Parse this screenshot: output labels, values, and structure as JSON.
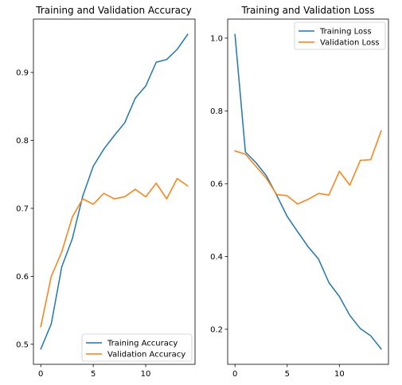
{
  "chart_data": [
    {
      "type": "line",
      "title": "Training and Validation Accuracy",
      "xlabel": "",
      "ylabel": "",
      "xlim": [
        -0.7,
        14.7
      ],
      "ylim": [
        0.4705,
        0.9785
      ],
      "xticks": [
        0,
        5,
        10
      ],
      "yticks": [
        0.5,
        0.6,
        0.7,
        0.8,
        0.9
      ],
      "ytick_labels": [
        "0.5",
        "0.6",
        "0.7",
        "0.8",
        "0.9"
      ],
      "grid": false,
      "legend_position": "lower right",
      "x": [
        0,
        1,
        2,
        3,
        4,
        5,
        6,
        7,
        8,
        9,
        10,
        11,
        12,
        13,
        14
      ],
      "series": [
        {
          "name": "Training Accuracy",
          "color": "#1f77b4",
          "values": [
            0.493,
            0.53,
            0.614,
            0.655,
            0.718,
            0.762,
            0.787,
            0.807,
            0.826,
            0.862,
            0.88,
            0.915,
            0.919,
            0.934,
            0.956
          ]
        },
        {
          "name": "Validation Accuracy",
          "color": "#ff7f0e",
          "values": [
            0.526,
            0.6,
            0.636,
            0.687,
            0.714,
            0.706,
            0.722,
            0.714,
            0.717,
            0.728,
            0.717,
            0.737,
            0.714,
            0.744,
            0.733
          ]
        }
      ]
    },
    {
      "type": "line",
      "title": "Training and Validation Loss",
      "xlabel": "",
      "ylabel": "",
      "xlim": [
        -0.7,
        14.7
      ],
      "ylim": [
        0.1037,
        1.0523
      ],
      "xticks": [
        0,
        5,
        10
      ],
      "yticks": [
        0.2,
        0.4,
        0.6,
        0.8,
        1.0
      ],
      "ytick_labels": [
        "0.2",
        "0.4",
        "0.6",
        "0.8",
        "1.0"
      ],
      "grid": false,
      "legend_position": "upper right",
      "x": [
        0,
        1,
        2,
        3,
        4,
        5,
        6,
        7,
        8,
        9,
        10,
        11,
        12,
        13,
        14
      ],
      "series": [
        {
          "name": "Training Loss",
          "color": "#1f77b4",
          "values": [
            1.01,
            0.687,
            0.658,
            0.622,
            0.568,
            0.51,
            0.468,
            0.427,
            0.393,
            0.328,
            0.29,
            0.238,
            0.202,
            0.182,
            0.146
          ]
        },
        {
          "name": "Validation Loss",
          "color": "#ff7f0e",
          "values": [
            0.69,
            0.681,
            0.648,
            0.615,
            0.57,
            0.567,
            0.544,
            0.557,
            0.573,
            0.569,
            0.634,
            0.596,
            0.664,
            0.666,
            0.745
          ]
        }
      ]
    }
  ]
}
